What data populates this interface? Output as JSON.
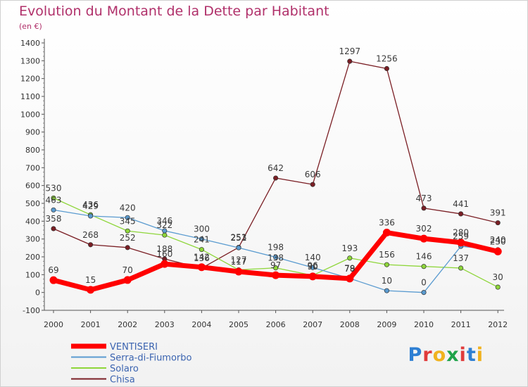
{
  "header": {
    "title": "Evolution du Montant de la Dette par Habitant",
    "unit": "(en €)"
  },
  "logo": {
    "text": "Proxiti",
    "colors": [
      "#2e7fd3",
      "#e03a3a",
      "#f0b21e",
      "#1fa34a",
      "#e03a3a",
      "#2e7fd3",
      "#f0b21e"
    ]
  },
  "chart_data": {
    "type": "line",
    "title": "Evolution du Montant de la Dette par Habitant",
    "ylabel": "(en €)",
    "ylim": [
      -100,
      1400
    ],
    "yticks": [
      -100,
      0,
      100,
      200,
      300,
      400,
      500,
      600,
      700,
      800,
      900,
      1000,
      1100,
      1200,
      1300,
      1400
    ],
    "x": [
      "2000",
      "2001",
      "2002",
      "2003",
      "2004",
      "2005",
      "2006",
      "2007",
      "2008",
      "2009",
      "2010",
      "2011",
      "2012"
    ],
    "legend_position": "bottom-left",
    "series": [
      {
        "name": "Chisa",
        "color": "#7a1e24",
        "values": [
          358,
          268,
          252,
          188,
          136,
          253,
          642,
          606,
          1297,
          1256,
          473,
          441,
          391
        ],
        "labels": [
          "358",
          "268",
          "252",
          "188",
          "136",
          "253",
          "642",
          "606",
          "1297",
          "1256",
          "473",
          "441",
          "391"
        ]
      },
      {
        "name": "Solaro",
        "color": "#8ed63a",
        "values": [
          530,
          436,
          345,
          322,
          241,
          127,
          138,
          96,
          193,
          156,
          146,
          137,
          30
        ],
        "labels": [
          "530",
          "436",
          "345",
          "322",
          "241",
          "127",
          "138",
          "96",
          "193",
          "156",
          "146",
          "137",
          "30"
        ]
      },
      {
        "name": "Serra-di-Fiumorbo",
        "color": "#5a9bd0",
        "values": [
          463,
          429,
          420,
          346,
          300,
          251,
          198,
          140,
          79,
          10,
          0,
          259,
          240
        ],
        "labels": [
          "463",
          "429",
          "420",
          "346",
          "300",
          "251",
          "198",
          "140",
          "79",
          "10",
          "0",
          "259",
          "240"
        ]
      },
      {
        "name": "VENTISERI",
        "color": "#ff0000",
        "values": [
          69,
          15,
          70,
          160,
          142,
          117,
          97,
          90,
          78,
          336,
          302,
          280,
          230
        ],
        "labels": [
          "69",
          "15",
          "70",
          "160",
          "142",
          "117",
          "97",
          "90",
          "78",
          "336",
          "302",
          "280",
          "230"
        ]
      }
    ],
    "legend": [
      "VENTISERI",
      "Serra-di-Fiumorbo",
      "Solaro",
      "Chisa"
    ]
  }
}
